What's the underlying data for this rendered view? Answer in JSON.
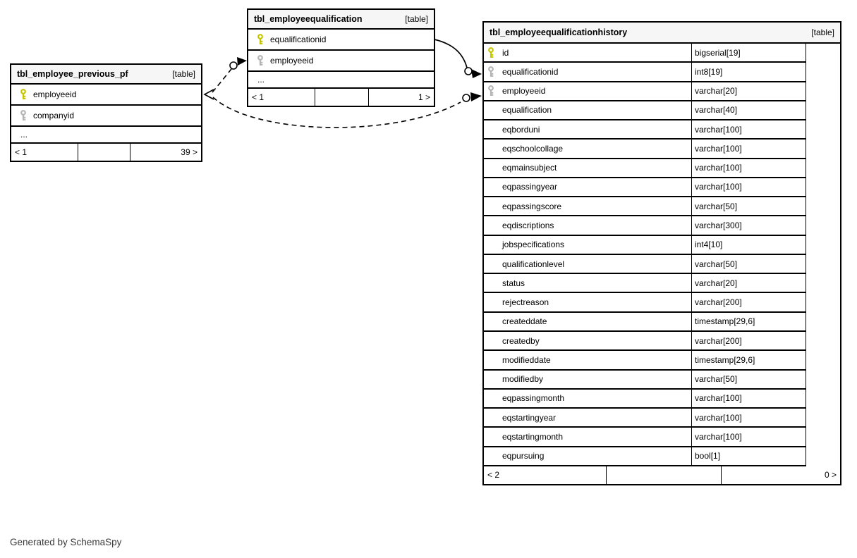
{
  "diagram_note": "Generated by SchemaSpy",
  "colors": {
    "primary_key": "#c6c600",
    "foreign_key": "#b4b4b4",
    "header_bg": "#f6f6f6",
    "border": "#000000"
  },
  "tables": [
    {
      "title": "tbl_employee_previous_pf",
      "badge": "[table]",
      "show_types": false,
      "columns": [
        {
          "name": "employeeid",
          "key": "primary"
        },
        {
          "name": "companyid",
          "key": "foreign"
        },
        {
          "name": "...",
          "key": "none"
        }
      ],
      "footer": {
        "left": "< 1",
        "mid": "",
        "right": "39 >"
      }
    },
    {
      "title": "tbl_employeequalification",
      "badge": "[table]",
      "show_types": false,
      "columns": [
        {
          "name": "equalificationid",
          "key": "primary"
        },
        {
          "name": "employeeid",
          "key": "foreign"
        },
        {
          "name": "...",
          "key": "none"
        }
      ],
      "footer": {
        "left": "< 1",
        "mid": "",
        "right": "1 >"
      }
    },
    {
      "title": "tbl_employeequalificationhistory",
      "badge": "[table]",
      "show_types": true,
      "columns": [
        {
          "name": "id",
          "type": "bigserial[19]",
          "key": "primary"
        },
        {
          "name": "equalificationid",
          "type": "int8[19]",
          "key": "foreign"
        },
        {
          "name": "employeeid",
          "type": "varchar[20]",
          "key": "foreign"
        },
        {
          "name": "equalification",
          "type": "varchar[40]",
          "key": "none"
        },
        {
          "name": "eqborduni",
          "type": "varchar[100]",
          "key": "none"
        },
        {
          "name": "eqschoolcollage",
          "type": "varchar[100]",
          "key": "none"
        },
        {
          "name": "eqmainsubject",
          "type": "varchar[100]",
          "key": "none"
        },
        {
          "name": "eqpassingyear",
          "type": "varchar[100]",
          "key": "none"
        },
        {
          "name": "eqpassingscore",
          "type": "varchar[50]",
          "key": "none"
        },
        {
          "name": "eqdiscriptions",
          "type": "varchar[300]",
          "key": "none"
        },
        {
          "name": "jobspecifications",
          "type": "int4[10]",
          "key": "none"
        },
        {
          "name": "qualificationlevel",
          "type": "varchar[50]",
          "key": "none"
        },
        {
          "name": "status",
          "type": "varchar[20]",
          "key": "none"
        },
        {
          "name": "rejectreason",
          "type": "varchar[200]",
          "key": "none"
        },
        {
          "name": "createddate",
          "type": "timestamp[29,6]",
          "key": "none"
        },
        {
          "name": "createdby",
          "type": "varchar[200]",
          "key": "none"
        },
        {
          "name": "modifieddate",
          "type": "timestamp[29,6]",
          "key": "none"
        },
        {
          "name": "modifiedby",
          "type": "varchar[50]",
          "key": "none"
        },
        {
          "name": "eqpassingmonth",
          "type": "varchar[100]",
          "key": "none"
        },
        {
          "name": "eqstartingyear",
          "type": "varchar[100]",
          "key": "none"
        },
        {
          "name": "eqstartingmonth",
          "type": "varchar[100]",
          "key": "none"
        },
        {
          "name": "eqpursuing",
          "type": "bool[1]",
          "key": "none"
        }
      ],
      "footer": {
        "left": "< 2",
        "mid": "",
        "right": "0 >"
      }
    }
  ],
  "relationships": [
    {
      "style": "solid",
      "from": "tbl_employeequalification.equalificationid",
      "to": "tbl_employeequalificationhistory.equalificationid"
    },
    {
      "style": "dashed",
      "from": "tbl_employee_previous_pf.employeeid",
      "to": "tbl_employeequalification.employeeid"
    },
    {
      "style": "dashed",
      "from": "tbl_employee_previous_pf.employeeid",
      "to": "tbl_employeequalificationhistory.employeeid"
    }
  ]
}
